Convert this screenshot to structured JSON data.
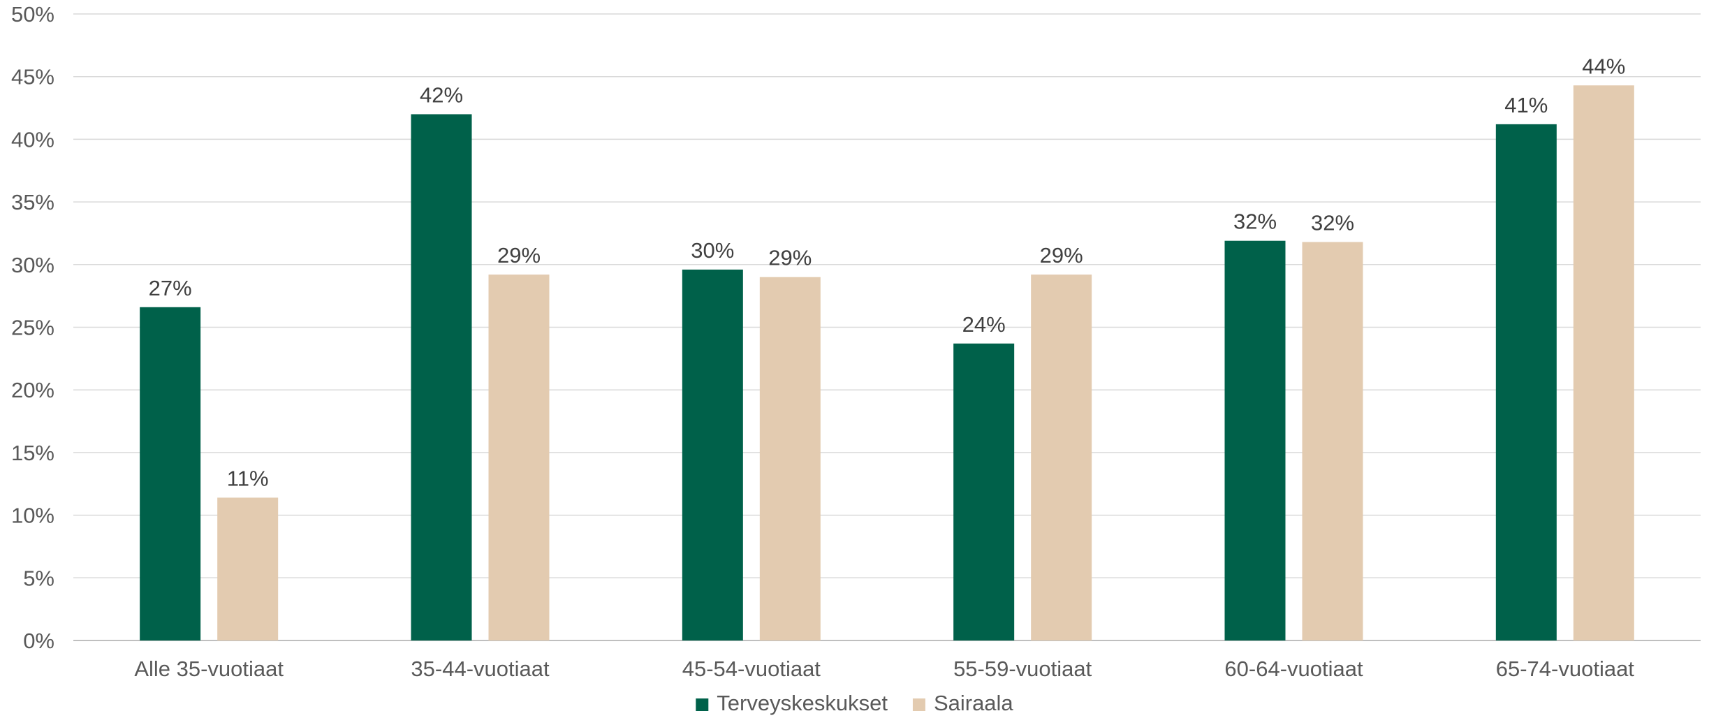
{
  "chart_data": {
    "type": "bar",
    "categories": [
      "Alle 35-vuotiaat",
      "35-44-vuotiaat",
      "45-54-vuotiaat",
      "55-59-vuotiaat",
      "60-64-vuotiaat",
      "65-74-vuotiaat"
    ],
    "series": [
      {
        "name": "Terveyskeskukset",
        "color": "#00614a",
        "values": [
          26.6,
          42.0,
          29.6,
          23.7,
          31.9,
          41.2
        ],
        "labels": [
          "27%",
          "42%",
          "30%",
          "24%",
          "32%",
          "41%"
        ]
      },
      {
        "name": "Sairaala",
        "color": "#e3cbb0",
        "values": [
          11.4,
          29.2,
          29.0,
          29.2,
          31.8,
          44.3
        ],
        "labels": [
          "11%",
          "29%",
          "29%",
          "29%",
          "32%",
          "44%"
        ]
      }
    ],
    "y_ticks": [
      "0%",
      "5%",
      "10%",
      "15%",
      "20%",
      "25%",
      "30%",
      "35%",
      "40%",
      "45%",
      "50%"
    ],
    "ylim": [
      0,
      50
    ],
    "grid": true,
    "legend": "bottom-center",
    "title": "",
    "xlabel": "",
    "ylabel": ""
  }
}
